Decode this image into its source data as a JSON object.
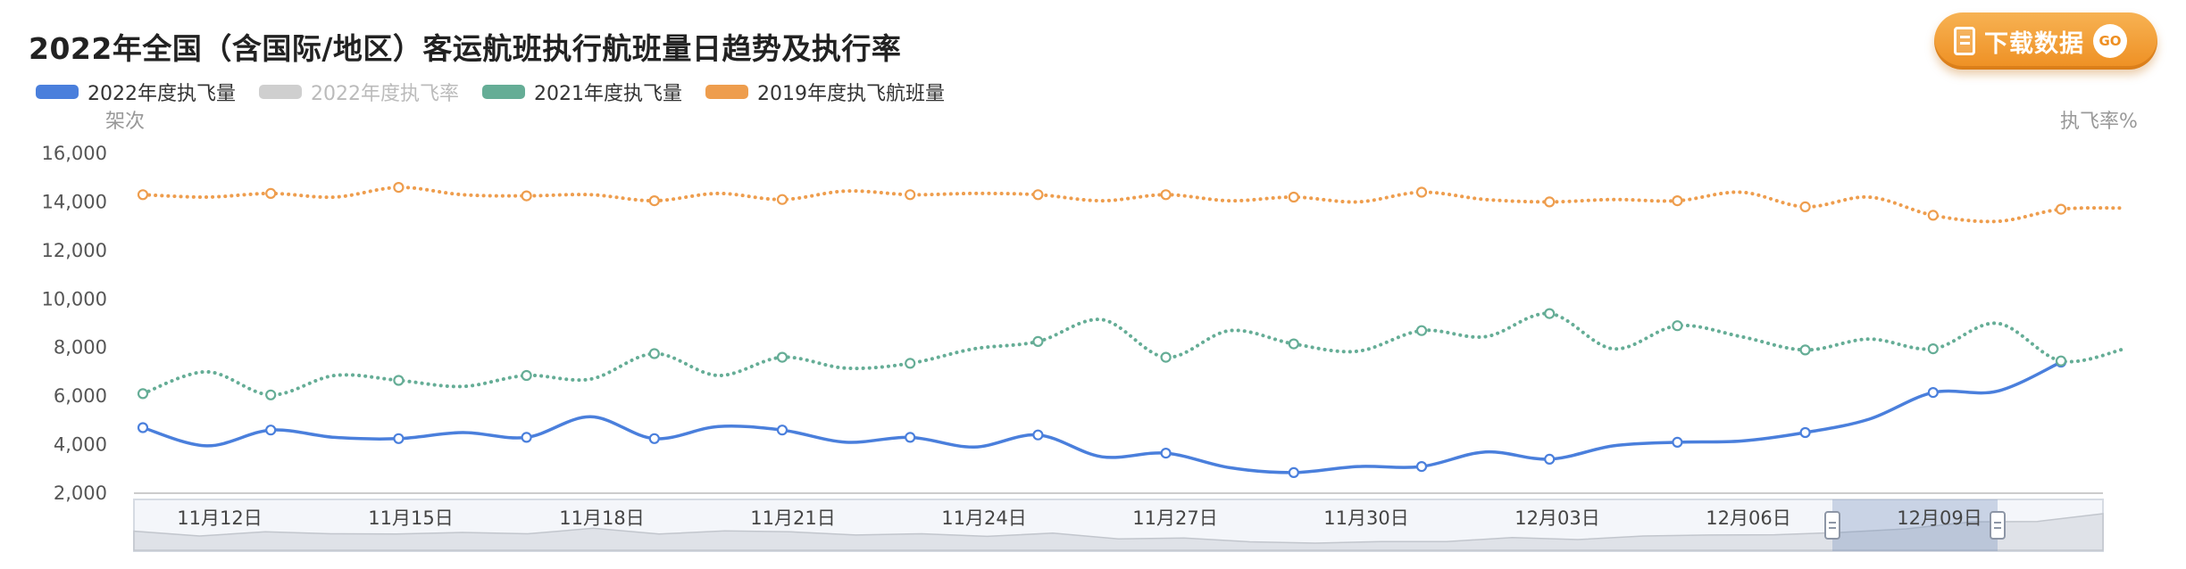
{
  "title": "2022年全国（含国际/地区）客运航班执行航班量日趋势及执行率",
  "download": {
    "label": "下载数据",
    "badge": "GO"
  },
  "y_left_unit": "架次",
  "y_right_unit": "执飞率%",
  "colors": {
    "s2022": "#4a7fdc",
    "rate2022": "#c8c8c8",
    "s2021": "#65ad96",
    "s2019": "#ee9d4d"
  },
  "chart_data": {
    "type": "line",
    "title": "2022年全国（含国际/地区）客运航班执行航班量日趋势及执行率",
    "ylabel": "架次",
    "y2label": "执飞率%",
    "ylim": [
      2000,
      16000
    ],
    "yticks": [
      2000,
      4000,
      6000,
      8000,
      10000,
      12000,
      14000,
      16000
    ],
    "ytick_labels": [
      "2,000",
      "4,000",
      "6,000",
      "8,000",
      "10,000",
      "12,000",
      "14,000",
      "16,000"
    ],
    "xtick_labels": [
      "11月12日",
      "11月15日",
      "11月18日",
      "11月21日",
      "11月24日",
      "11月27日",
      "11月30日",
      "12月03日",
      "12月06日",
      "12月09日"
    ],
    "legend_position": "top-left",
    "grid": false,
    "series": [
      {
        "name": "2022年度执飞量",
        "style": "solid",
        "values": [
          4700,
          3950,
          4600,
          4300,
          4250,
          4500,
          4300,
          5150,
          4250,
          4750,
          4600,
          4100,
          4300,
          3900,
          4400,
          3500,
          3650,
          3050,
          2850,
          3100,
          3100,
          3700,
          3400,
          3950,
          4100,
          4150,
          4500,
          5050,
          6150,
          6200,
          7400
        ]
      },
      {
        "name": "2022年度执飞率",
        "style": "hidden",
        "values": []
      },
      {
        "name": "2021年度执飞量",
        "style": "dotted",
        "values": [
          6100,
          7000,
          6050,
          6850,
          6650,
          6400,
          6850,
          6700,
          7750,
          6850,
          7600,
          7150,
          7350,
          7950,
          8250,
          9150,
          7600,
          8700,
          8150,
          7850,
          8700,
          8450,
          9400,
          7950,
          8900,
          8450,
          7900,
          8350,
          7950,
          9000,
          7450,
          7950
        ]
      },
      {
        "name": "2019年度执飞航班量",
        "style": "dotted",
        "values": [
          14300,
          14200,
          14350,
          14200,
          14600,
          14300,
          14250,
          14300,
          14050,
          14350,
          14100,
          14450,
          14300,
          14350,
          14300,
          14050,
          14300,
          14050,
          14200,
          14000,
          14400,
          14100,
          14000,
          14100,
          14050,
          14400,
          13800,
          14200,
          13450,
          13200,
          13700,
          13750
        ]
      }
    ]
  }
}
